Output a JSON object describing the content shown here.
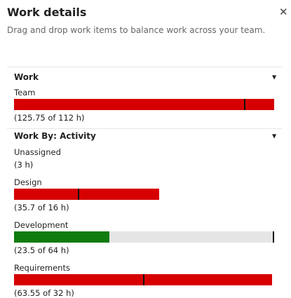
{
  "header": {
    "title": "Work details",
    "subtitle": "Drag and drop work items to balance work across your team."
  },
  "sections": [
    {
      "title": "Work",
      "rows": [
        {
          "name": "Team",
          "label": "(125.75 of 112 h)",
          "work": 125.75,
          "capacity": 112
        }
      ]
    },
    {
      "title": "Work By: Activity",
      "rows": [
        {
          "name": "Unassigned",
          "label": "(3 h)"
        },
        {
          "name": "Design",
          "label": "(35.7 of 16 h)",
          "work": 35.7,
          "capacity": 16
        },
        {
          "name": "Development",
          "label": "(23.5 of 64 h)",
          "work": 23.5,
          "capacity": 64
        },
        {
          "name": "Requirements",
          "label": "(63.55 of 32 h)",
          "work": 63.55,
          "capacity": 32
        }
      ]
    }
  ]
}
